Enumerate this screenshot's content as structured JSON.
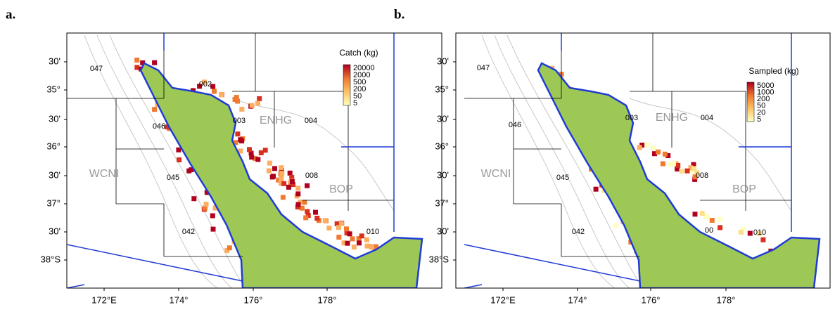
{
  "panels": [
    {
      "label": "a.",
      "legend_title": "Catch (kg)",
      "legend_labels": [
        "20000",
        "2000",
        "500",
        "200",
        "50",
        "5"
      ],
      "lat_labels": [
        "30'",
        "35°",
        "30'",
        "36°",
        "30'",
        "37°",
        "30'",
        "38°S"
      ],
      "lon_labels": [
        "172°E",
        "174°",
        "176°",
        "178°"
      ],
      "region_labels": [
        "047",
        "002",
        "046",
        "003",
        "ENHG",
        "004",
        "WCNI",
        "045",
        "008",
        "BOP",
        "042",
        "010"
      ]
    },
    {
      "label": "b.",
      "legend_title": "Sampled (kg)",
      "legend_labels": [
        "5000",
        "1000",
        "200",
        "50",
        "20",
        "5"
      ],
      "lat_labels": [
        "30'",
        "35°",
        "30'",
        "36°",
        "30'",
        "37°",
        "30'",
        "38°S"
      ],
      "lon_labels": [
        "172°E",
        "174°",
        "176°",
        "178°"
      ],
      "region_labels": [
        "047",
        "003",
        "ENHG",
        "004",
        "046",
        "WCNI",
        "045",
        "008",
        "BOP",
        "042",
        "00",
        "010"
      ]
    }
  ]
}
